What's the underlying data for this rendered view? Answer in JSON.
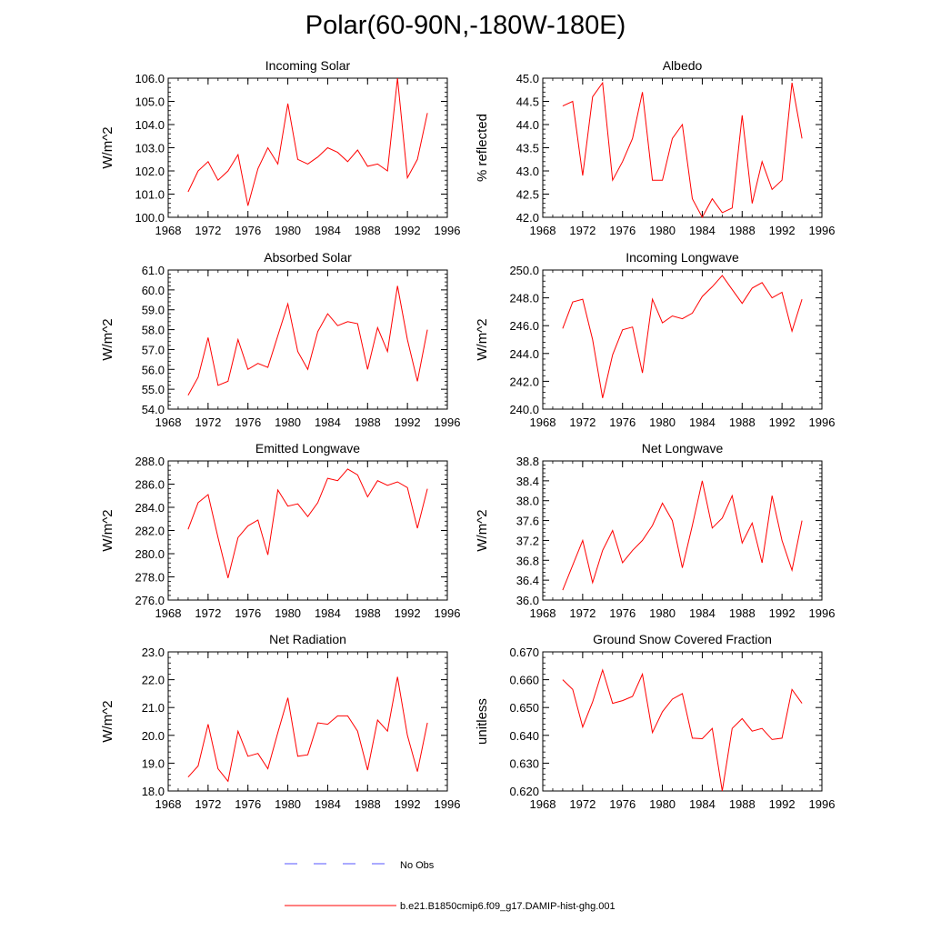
{
  "title": "Polar(60-90N,-180W-180E)",
  "colors": {
    "model": "#ff0000",
    "obs": "#5555ff",
    "axis": "#000000"
  },
  "legend": {
    "obs_label": "No Obs",
    "model_label": "b.e21.B1850cmip6.f09_g17.DAMIP-hist-ghg.001"
  },
  "chart_data": [
    {
      "type": "line",
      "title": "Incoming Solar",
      "ylabel": "W/m^2",
      "xlim": [
        1968,
        1996
      ],
      "ylim": [
        100.0,
        106.0
      ],
      "xticks": [
        1968,
        1972,
        1976,
        1980,
        1984,
        1988,
        1992,
        1996
      ],
      "yticks": [
        "100.0",
        "101.0",
        "102.0",
        "103.0",
        "104.0",
        "105.0",
        "106.0"
      ],
      "grid": false,
      "x": [
        1970,
        1971,
        1972,
        1973,
        1974,
        1975,
        1976,
        1977,
        1978,
        1979,
        1980,
        1981,
        1982,
        1983,
        1984,
        1985,
        1986,
        1987,
        1988,
        1989,
        1990,
        1991,
        1992,
        1993,
        1994
      ],
      "series": [
        {
          "name": "b.e21.B1850cmip6.f09_g17.DAMIP-hist-ghg.001",
          "values": [
            101.1,
            102.0,
            102.4,
            101.6,
            102.0,
            102.7,
            100.5,
            102.1,
            103.0,
            102.3,
            104.9,
            102.5,
            102.3,
            102.6,
            103.0,
            102.8,
            102.4,
            102.9,
            102.2,
            102.3,
            102.0,
            106.0,
            101.7,
            102.5,
            104.5
          ]
        }
      ]
    },
    {
      "type": "line",
      "title": "Albedo",
      "ylabel": "% reflected",
      "xlim": [
        1968,
        1996
      ],
      "ylim": [
        42.0,
        45.0
      ],
      "xticks": [
        1968,
        1972,
        1976,
        1980,
        1984,
        1988,
        1992,
        1996
      ],
      "yticks": [
        "42.0",
        "42.5",
        "43.0",
        "43.5",
        "44.0",
        "44.5",
        "45.0"
      ],
      "grid": false,
      "x": [
        1970,
        1971,
        1972,
        1973,
        1974,
        1975,
        1976,
        1977,
        1978,
        1979,
        1980,
        1981,
        1982,
        1983,
        1984,
        1985,
        1986,
        1987,
        1988,
        1989,
        1990,
        1991,
        1992,
        1993,
        1994
      ],
      "series": [
        {
          "name": "b.e21.B1850cmip6.f09_g17.DAMIP-hist-ghg.001",
          "values": [
            44.4,
            44.5,
            42.9,
            44.6,
            44.9,
            42.8,
            43.2,
            43.7,
            44.7,
            42.8,
            42.8,
            43.7,
            44.0,
            42.4,
            42.0,
            42.4,
            42.1,
            42.2,
            44.2,
            42.3,
            43.2,
            42.6,
            42.8,
            44.9,
            43.7
          ]
        }
      ]
    },
    {
      "type": "line",
      "title": "Absorbed Solar",
      "ylabel": "W/m^2",
      "xlim": [
        1968,
        1996
      ],
      "ylim": [
        54.0,
        61.0
      ],
      "xticks": [
        1968,
        1972,
        1976,
        1980,
        1984,
        1988,
        1992,
        1996
      ],
      "yticks": [
        "54.0",
        "55.0",
        "56.0",
        "57.0",
        "58.0",
        "59.0",
        "60.0",
        "61.0"
      ],
      "grid": false,
      "x": [
        1970,
        1971,
        1972,
        1973,
        1974,
        1975,
        1976,
        1977,
        1978,
        1979,
        1980,
        1981,
        1982,
        1983,
        1984,
        1985,
        1986,
        1987,
        1988,
        1989,
        1990,
        1991,
        1992,
        1993,
        1994
      ],
      "series": [
        {
          "name": "b.e21.B1850cmip6.f09_g17.DAMIP-hist-ghg.001",
          "values": [
            54.7,
            55.6,
            57.6,
            55.2,
            55.4,
            57.5,
            56.0,
            56.3,
            56.1,
            57.7,
            59.3,
            56.9,
            56.0,
            57.9,
            58.8,
            58.2,
            58.4,
            58.3,
            56.0,
            58.1,
            56.9,
            60.2,
            57.5,
            55.4,
            58.0
          ]
        }
      ]
    },
    {
      "type": "line",
      "title": "Incoming Longwave",
      "ylabel": "W/m^2",
      "xlim": [
        1968,
        1996
      ],
      "ylim": [
        240.0,
        250.0
      ],
      "xticks": [
        1968,
        1972,
        1976,
        1980,
        1984,
        1988,
        1992,
        1996
      ],
      "yticks": [
        "240.0",
        "242.0",
        "244.0",
        "246.0",
        "248.0",
        "250.0"
      ],
      "grid": false,
      "x": [
        1970,
        1971,
        1972,
        1973,
        1974,
        1975,
        1976,
        1977,
        1978,
        1979,
        1980,
        1981,
        1982,
        1983,
        1984,
        1985,
        1986,
        1987,
        1988,
        1989,
        1990,
        1991,
        1992,
        1993,
        1994
      ],
      "series": [
        {
          "name": "b.e21.B1850cmip6.f09_g17.DAMIP-hist-ghg.001",
          "values": [
            245.8,
            247.7,
            247.9,
            245.0,
            240.8,
            243.9,
            245.7,
            245.9,
            242.6,
            247.9,
            246.2,
            246.7,
            246.5,
            246.9,
            248.1,
            248.8,
            249.6,
            248.6,
            247.6,
            248.7,
            249.1,
            248.0,
            248.4,
            245.6,
            247.9
          ]
        }
      ]
    },
    {
      "type": "line",
      "title": "Emitted Longwave",
      "ylabel": "W/m^2",
      "xlim": [
        1968,
        1996
      ],
      "ylim": [
        276.0,
        288.0
      ],
      "xticks": [
        1968,
        1972,
        1976,
        1980,
        1984,
        1988,
        1992,
        1996
      ],
      "yticks": [
        "276.0",
        "278.0",
        "280.0",
        "282.0",
        "284.0",
        "286.0",
        "288.0"
      ],
      "grid": false,
      "x": [
        1970,
        1971,
        1972,
        1973,
        1974,
        1975,
        1976,
        1977,
        1978,
        1979,
        1980,
        1981,
        1982,
        1983,
        1984,
        1985,
        1986,
        1987,
        1988,
        1989,
        1990,
        1991,
        1992,
        1993,
        1994
      ],
      "series": [
        {
          "name": "b.e21.B1850cmip6.f09_g17.DAMIP-hist-ghg.001",
          "values": [
            282.1,
            284.4,
            285.1,
            281.4,
            277.9,
            281.4,
            282.4,
            282.9,
            279.9,
            285.5,
            284.1,
            284.3,
            283.2,
            284.4,
            286.5,
            286.3,
            287.3,
            286.8,
            284.9,
            286.3,
            285.9,
            286.2,
            285.7,
            282.2,
            285.6
          ]
        }
      ]
    },
    {
      "type": "line",
      "title": "Net Longwave",
      "ylabel": "W/m^2",
      "xlim": [
        1968,
        1996
      ],
      "ylim": [
        36.0,
        38.8
      ],
      "xticks": [
        1968,
        1972,
        1976,
        1980,
        1984,
        1988,
        1992,
        1996
      ],
      "yticks": [
        "36.0",
        "36.4",
        "36.8",
        "37.2",
        "37.6",
        "38.0",
        "38.4",
        "38.8"
      ],
      "grid": false,
      "x": [
        1970,
        1971,
        1972,
        1973,
        1974,
        1975,
        1976,
        1977,
        1978,
        1979,
        1980,
        1981,
        1982,
        1983,
        1984,
        1985,
        1986,
        1987,
        1988,
        1989,
        1990,
        1991,
        1992,
        1993,
        1994
      ],
      "series": [
        {
          "name": "b.e21.B1850cmip6.f09_g17.DAMIP-hist-ghg.001",
          "values": [
            36.2,
            36.7,
            37.2,
            36.35,
            37.0,
            37.4,
            36.75,
            37.0,
            37.2,
            37.5,
            37.95,
            37.6,
            36.65,
            37.5,
            38.4,
            37.45,
            37.65,
            38.1,
            37.15,
            37.55,
            36.75,
            38.1,
            37.2,
            36.6,
            37.6
          ]
        }
      ]
    },
    {
      "type": "line",
      "title": "Net Radiation",
      "ylabel": "W/m^2",
      "xlim": [
        1968,
        1996
      ],
      "ylim": [
        18.0,
        23.0
      ],
      "xticks": [
        1968,
        1972,
        1976,
        1980,
        1984,
        1988,
        1992,
        1996
      ],
      "yticks": [
        "18.0",
        "19.0",
        "20.0",
        "21.0",
        "22.0",
        "23.0"
      ],
      "grid": false,
      "x": [
        1970,
        1971,
        1972,
        1973,
        1974,
        1975,
        1976,
        1977,
        1978,
        1979,
        1980,
        1981,
        1982,
        1983,
        1984,
        1985,
        1986,
        1987,
        1988,
        1989,
        1990,
        1991,
        1992,
        1993,
        1994
      ],
      "series": [
        {
          "name": "b.e21.B1850cmip6.f09_g17.DAMIP-hist-ghg.001",
          "values": [
            18.5,
            18.9,
            20.4,
            18.8,
            18.35,
            20.15,
            19.25,
            19.35,
            18.8,
            20.1,
            21.35,
            19.25,
            19.3,
            20.45,
            20.4,
            20.7,
            20.7,
            20.15,
            18.75,
            20.55,
            20.15,
            22.1,
            20.0,
            18.7,
            20.45
          ]
        }
      ]
    },
    {
      "type": "line",
      "title": "Ground Snow Covered Fraction",
      "ylabel": "unitless",
      "xlim": [
        1968,
        1996
      ],
      "ylim": [
        0.62,
        0.67
      ],
      "xticks": [
        1968,
        1972,
        1976,
        1980,
        1984,
        1988,
        1992,
        1996
      ],
      "yticks": [
        "0.620",
        "0.630",
        "0.640",
        "0.650",
        "0.660",
        "0.670"
      ],
      "grid": false,
      "x": [
        1970,
        1971,
        1972,
        1973,
        1974,
        1975,
        1976,
        1977,
        1978,
        1979,
        1980,
        1981,
        1982,
        1983,
        1984,
        1985,
        1986,
        1987,
        1988,
        1989,
        1990,
        1991,
        1992,
        1993,
        1994
      ],
      "series": [
        {
          "name": "b.e21.B1850cmip6.f09_g17.DAMIP-hist-ghg.001",
          "values": [
            0.66,
            0.6565,
            0.643,
            0.652,
            0.6635,
            0.6515,
            0.6525,
            0.654,
            0.662,
            0.641,
            0.6485,
            0.653,
            0.655,
            0.639,
            0.6388,
            0.6425,
            0.62,
            0.6425,
            0.646,
            0.6415,
            0.6425,
            0.6385,
            0.639,
            0.6565,
            0.6515
          ]
        }
      ]
    }
  ]
}
